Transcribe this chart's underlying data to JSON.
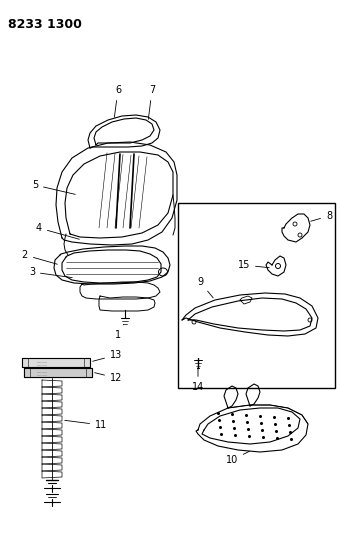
{
  "title": "8233 1300",
  "background_color": "#ffffff",
  "line_color": "#000000",
  "title_fontsize": 9,
  "label_fontsize": 7,
  "figsize": [
    3.4,
    5.33
  ],
  "dpi": 100
}
